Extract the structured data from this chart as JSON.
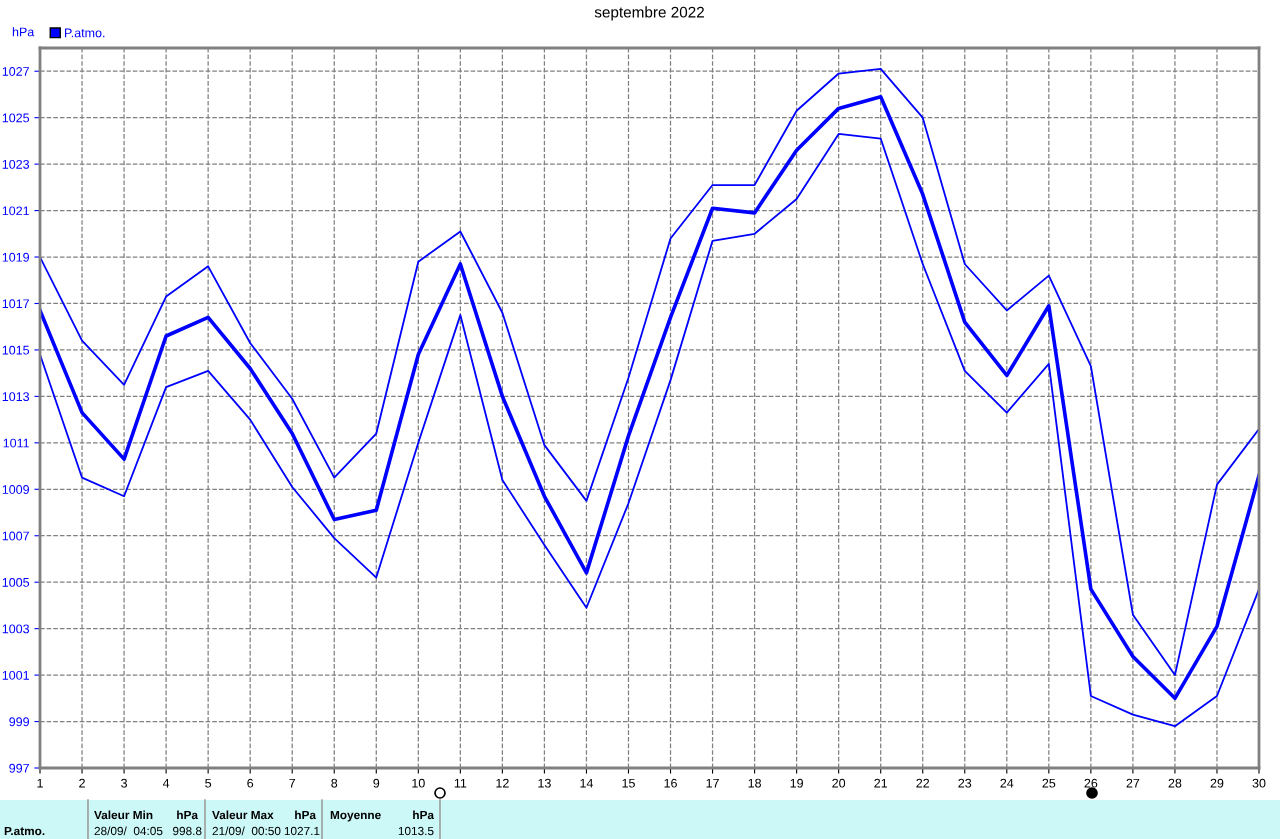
{
  "chart_data": {
    "type": "line",
    "title": "septembre 2022",
    "ylabel": "hPa",
    "x": [
      1,
      2,
      3,
      4,
      5,
      6,
      7,
      8,
      9,
      10,
      11,
      12,
      13,
      14,
      15,
      16,
      17,
      18,
      19,
      20,
      21,
      22,
      23,
      24,
      25,
      26,
      27,
      28,
      29,
      30
    ],
    "series": [
      {
        "color": "#0000ff",
        "values": [
          1019.0,
          1015.4,
          1013.5,
          1017.3,
          1018.6,
          1015.3,
          1012.9,
          1009.5,
          1011.4,
          1018.8,
          1020.1,
          1016.6,
          1010.9,
          1008.5,
          1013.8,
          1019.8,
          1022.1,
          1022.1,
          1025.3,
          1026.9,
          1027.1,
          1025.0,
          1018.7,
          1016.7,
          1018.2,
          1014.3,
          1003.6,
          1001.0,
          1009.2,
          1011.6
        ]
      },
      {
        "name": "P.atmo.",
        "color": "#0000ff",
        "values": [
          1016.7,
          1012.3,
          1010.3,
          1015.6,
          1016.4,
          1014.2,
          1011.4,
          1007.7,
          1008.1,
          1014.8,
          1018.7,
          1013.0,
          1008.7,
          1005.4,
          1011.3,
          1016.4,
          1021.1,
          1020.9,
          1023.6,
          1025.4,
          1025.9,
          1021.7,
          1016.2,
          1013.9,
          1016.9,
          1004.7,
          1001.8,
          1000.0,
          1003.1,
          1009.6
        ]
      },
      {
        "color": "#0000ff",
        "values": [
          1014.8,
          1009.5,
          1008.7,
          1013.4,
          1014.1,
          1012.0,
          1009.1,
          1006.9,
          1005.2,
          1011.0,
          1016.5,
          1009.4,
          1006.6,
          1003.9,
          1008.4,
          1013.7,
          1019.7,
          1020.0,
          1021.5,
          1024.3,
          1024.1,
          1018.7,
          1014.1,
          1012.3,
          1014.4,
          1000.1,
          999.3,
          998.8,
          1000.1,
          1004.7
        ]
      }
    ],
    "xlim": [
      1,
      30
    ],
    "xticks": [
      1,
      2,
      3,
      4,
      5,
      6,
      7,
      8,
      9,
      10,
      11,
      12,
      13,
      14,
      15,
      16,
      17,
      18,
      19,
      20,
      21,
      22,
      23,
      24,
      25,
      26,
      27,
      28,
      29,
      30
    ],
    "ylim": [
      997,
      1028
    ],
    "yticks": [
      997,
      999,
      1001,
      1003,
      1005,
      1007,
      1009,
      1011,
      1013,
      1015,
      1017,
      1019,
      1021,
      1023,
      1025,
      1027
    ],
    "grid": true,
    "legend": "top left",
    "marker": "none",
    "line_style": "solid",
    "annotations": [
      "P.atmo.",
      "Valeur Min",
      "hPa",
      "28/09/  04:05",
      "998.8",
      "Valeur Max",
      "hPa",
      "21/09/  00:50",
      "1027.1",
      "Moyenne",
      "hPa",
      "1013.5"
    ]
  }
}
